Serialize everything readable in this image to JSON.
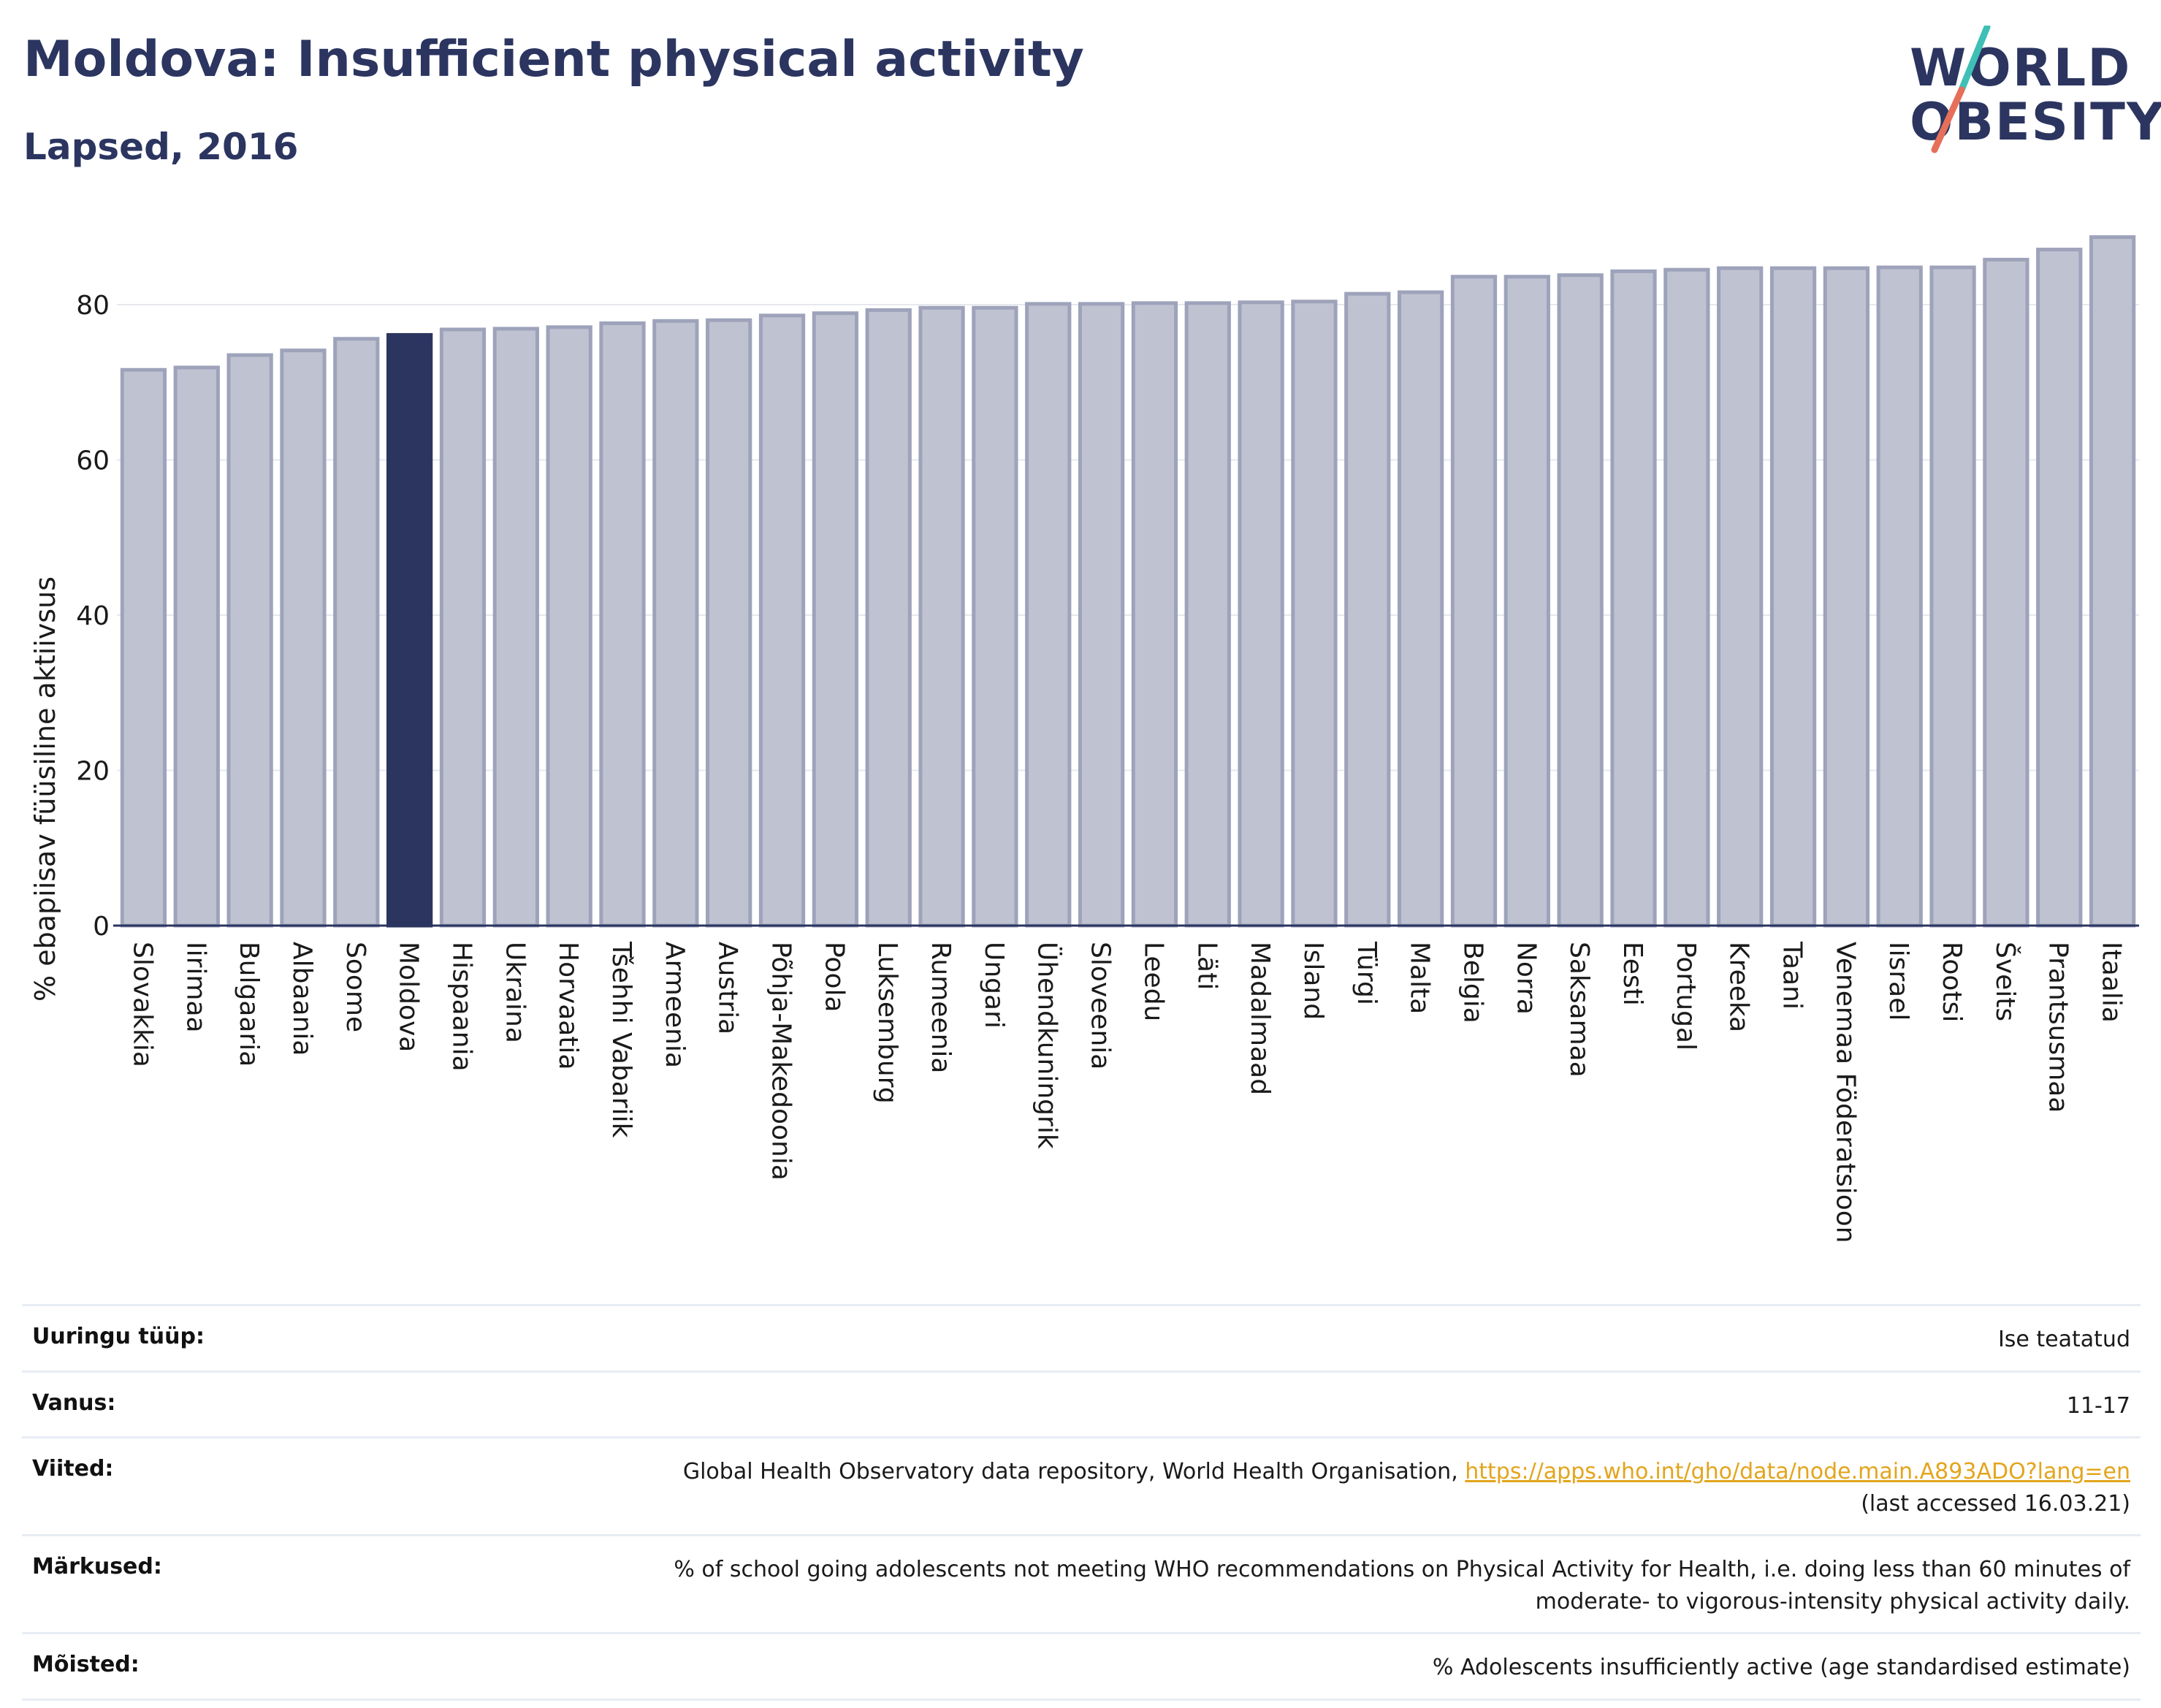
{
  "header": {
    "title": "Moldova: Insufficient physical activity",
    "subtitle": "Lapsed, 2016"
  },
  "logo": {
    "line1": "WORLD",
    "line2": "OBESITY",
    "colors": {
      "teal": "#3fbfb5",
      "coral": "#e66f5a"
    }
  },
  "colors": {
    "bar": "#bfc2d0",
    "bar_stroke": "#9ea3bb",
    "highlight": "#2b3560",
    "axis": "#2b3560",
    "grid": "#e6e8ee",
    "link": "#e3a51d"
  },
  "chart_data": {
    "type": "bar",
    "title": "Moldova: Insufficient physical activity",
    "subtitle": "Lapsed, 2016",
    "ylabel": "% ebapiisav füüsiline aktiivsus",
    "xlabel": "",
    "ylim": [
      0,
      90
    ],
    "yticks": [
      0,
      20,
      40,
      60,
      80
    ],
    "grid": true,
    "highlight": "Moldova",
    "categories": [
      "Slovakkia",
      "Iirimaa",
      "Bulgaaria",
      "Albaania",
      "Soome",
      "Moldova",
      "Hispaania",
      "Ukraina",
      "Horvaatia",
      "Tšehhi Vabariik",
      "Armeenia",
      "Austria",
      "Põhja-Makedoonia",
      "Poola",
      "Luksemburg",
      "Rumeenia",
      "Ungari",
      "Ühendkuningrik",
      "Sloveenia",
      "Leedu",
      "Läti",
      "Madalmaad",
      "Island",
      "Türgi",
      "Malta",
      "Belgia",
      "Norra",
      "Saksamaa",
      "Eesti",
      "Portugal",
      "Kreeka",
      "Taani",
      "Venemaa Föderatsioon",
      "Iisrael",
      "Rootsi",
      "Šveits",
      "Prantsusmaa",
      "Itaalia"
    ],
    "values": [
      71.6,
      71.9,
      73.5,
      74.1,
      75.6,
      76.1,
      76.8,
      76.9,
      77.1,
      77.6,
      77.9,
      78.0,
      78.6,
      78.9,
      79.3,
      79.6,
      79.6,
      80.1,
      80.1,
      80.2,
      80.2,
      80.3,
      80.4,
      81.4,
      81.6,
      83.6,
      83.6,
      83.8,
      84.3,
      84.5,
      84.7,
      84.7,
      84.7,
      84.8,
      84.8,
      85.8,
      87.1,
      88.7
    ]
  },
  "info": {
    "survey_label": "Uuringu tüüp:",
    "survey_value": "Ise teatatud",
    "age_label": "Vanus:",
    "age_value": "11-17",
    "refs_label": "Viited:",
    "refs_text": "Global Health Observatory data repository, World Health Organisation, ",
    "refs_link": "https://apps.who.int/gho/data/node.main.A893ADO?lang=en",
    "refs_accessed": "(last accessed 16.03.21)",
    "notes_label": "Märkused:",
    "notes_line1": "% of school going adolescents not meeting WHO recommendations on Physical Activity for Health, i.e. doing less than 60 minutes of",
    "notes_line2": "moderate- to vigorous-intensity physical activity daily.",
    "defs_label": "Mõisted:",
    "defs_value": "% Adolescents insufficiently active (age standardised estimate)"
  }
}
